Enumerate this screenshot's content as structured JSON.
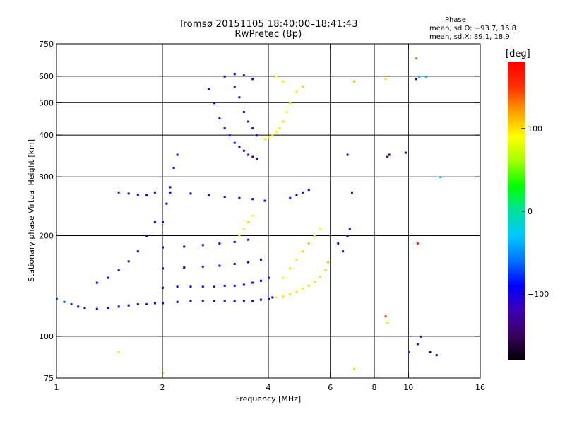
{
  "header": {
    "title": "Tromsø 20151105 18:40:00–18:41:43",
    "subtitle": "RwPretec (8p)",
    "phase_heading": "Phase",
    "stat_o": "mean, sd,O: −93.7, 16.8",
    "stat_x": "mean, sd,X:  89.1, 18.9"
  },
  "colorbar": {
    "unit": "[deg]",
    "ticks": [
      {
        "value": 100,
        "label": "100"
      },
      {
        "value": 0,
        "label": "0"
      },
      {
        "value": -100,
        "label": "−100"
      }
    ],
    "range": [
      -180,
      180
    ],
    "colors_bottom_to_top": [
      "#000000",
      "#3a0060",
      "#3d00b4",
      "#0000ff",
      "#0070ff",
      "#00c8ff",
      "#00e0a0",
      "#00ff00",
      "#a0ff00",
      "#ffff00",
      "#ffa000",
      "#ff3000",
      "#ff0000"
    ]
  },
  "chart_data": {
    "type": "scatter",
    "title": "Tromsø 20151105 18:40:00–18:41:43",
    "subtitle": "RwPretec (8p)",
    "xlabel": "Frequency [MHz]",
    "ylabel": "Stationary phase Virtual Height [km]",
    "x_scale": "log",
    "y_scale": "log",
    "xlim": [
      1,
      16
    ],
    "ylim": [
      75,
      750
    ],
    "x_ticks": [
      {
        "value": 1,
        "label": "1"
      },
      {
        "value": 2,
        "label": "2"
      },
      {
        "value": 4,
        "label": "4"
      },
      {
        "value": 6,
        "label": "6"
      },
      {
        "value": 8,
        "label": "8"
      },
      {
        "value": 10,
        "label": "10"
      },
      {
        "value": 16,
        "label": "16"
      }
    ],
    "x_grid": [
      2,
      4,
      6,
      8,
      10
    ],
    "y_ticks": [
      {
        "value": 75,
        "label": "75"
      },
      {
        "value": 100,
        "label": "100"
      },
      {
        "value": 200,
        "label": "200"
      },
      {
        "value": 300,
        "label": "300"
      },
      {
        "value": 400,
        "label": "400"
      },
      {
        "value": 500,
        "label": "500"
      },
      {
        "value": 600,
        "label": "600"
      },
      {
        "value": 750,
        "label": "750"
      }
    ],
    "y_grid": [
      100,
      200,
      300,
      400,
      500,
      600
    ],
    "grid": true,
    "color_by": "phase [deg]",
    "points": [
      [
        1.0,
        130,
        -60
      ],
      [
        1.05,
        127,
        -70
      ],
      [
        1.1,
        125,
        -80
      ],
      [
        1.15,
        123,
        -95
      ],
      [
        1.2,
        122,
        -100
      ],
      [
        1.3,
        121,
        -100
      ],
      [
        1.4,
        122,
        -105
      ],
      [
        1.5,
        123,
        -100
      ],
      [
        1.6,
        124,
        -100
      ],
      [
        1.7,
        125,
        -105
      ],
      [
        1.8,
        125,
        -100
      ],
      [
        1.9,
        126,
        -100
      ],
      [
        2.0,
        126,
        -100
      ],
      [
        2.2,
        127,
        -100
      ],
      [
        2.4,
        128,
        -100
      ],
      [
        2.6,
        128,
        -100
      ],
      [
        2.8,
        128,
        -100
      ],
      [
        3.0,
        128,
        -100
      ],
      [
        3.2,
        128,
        -100
      ],
      [
        3.4,
        128,
        -100
      ],
      [
        3.6,
        128,
        -95
      ],
      [
        3.8,
        129,
        -95
      ],
      [
        4.0,
        130,
        -95
      ],
      [
        4.1,
        131,
        -95
      ],
      [
        4.2,
        131,
        95
      ],
      [
        4.4,
        132,
        95
      ],
      [
        4.6,
        134,
        100
      ],
      [
        4.8,
        136,
        100
      ],
      [
        5.0,
        139,
        95
      ],
      [
        5.2,
        142,
        100
      ],
      [
        5.4,
        146,
        95
      ],
      [
        5.6,
        151,
        100
      ],
      [
        5.8,
        158,
        105
      ],
      [
        5.9,
        167,
        110
      ],
      [
        1.3,
        145,
        -100
      ],
      [
        1.4,
        150,
        -100
      ],
      [
        1.5,
        158,
        -100
      ],
      [
        1.6,
        168,
        -105
      ],
      [
        1.7,
        180,
        -100
      ],
      [
        1.8,
        200,
        -95
      ],
      [
        1.9,
        220,
        -100
      ],
      [
        2.0,
        140,
        -100
      ],
      [
        2.2,
        141,
        -100
      ],
      [
        2.4,
        141,
        -100
      ],
      [
        2.6,
        141,
        -100
      ],
      [
        2.8,
        141,
        -100
      ],
      [
        3.0,
        142,
        -90
      ],
      [
        3.2,
        142,
        -90
      ],
      [
        3.4,
        143,
        -95
      ],
      [
        3.6,
        145,
        -95
      ],
      [
        3.8,
        147,
        -90
      ],
      [
        4.0,
        150,
        -90
      ],
      [
        2.0,
        160,
        -100
      ],
      [
        2.3,
        161,
        -105
      ],
      [
        2.6,
        162,
        -100
      ],
      [
        2.9,
        163,
        -90
      ],
      [
        3.2,
        165,
        -95
      ],
      [
        3.5,
        167,
        -90
      ],
      [
        3.8,
        170,
        -95
      ],
      [
        2.0,
        185,
        -100
      ],
      [
        2.3,
        186,
        -105
      ],
      [
        2.6,
        188,
        -100
      ],
      [
        2.9,
        190,
        -95
      ],
      [
        3.2,
        192,
        -90
      ],
      [
        3.5,
        195,
        -95
      ],
      [
        1.5,
        270,
        -100
      ],
      [
        1.6,
        268,
        -100
      ],
      [
        1.7,
        266,
        -105
      ],
      [
        1.8,
        265,
        -100
      ],
      [
        1.9,
        270,
        -100
      ],
      [
        2.0,
        220,
        -100
      ],
      [
        2.05,
        250,
        -100
      ],
      [
        2.1,
        280,
        -100
      ],
      [
        2.15,
        320,
        -105
      ],
      [
        2.2,
        350,
        -100
      ],
      [
        2.1,
        270,
        -100
      ],
      [
        2.4,
        268,
        -105
      ],
      [
        2.7,
        265,
        -100
      ],
      [
        3.0,
        262,
        -100
      ],
      [
        3.3,
        260,
        -100
      ],
      [
        3.6,
        258,
        -95
      ],
      [
        3.9,
        255,
        -90
      ],
      [
        2.7,
        550,
        -90
      ],
      [
        2.8,
        500,
        -100
      ],
      [
        2.9,
        450,
        -100
      ],
      [
        3.0,
        420,
        -100
      ],
      [
        3.1,
        400,
        -105
      ],
      [
        3.2,
        380,
        -110
      ],
      [
        3.3,
        370,
        -120
      ],
      [
        3.4,
        360,
        -120
      ],
      [
        3.5,
        350,
        -115
      ],
      [
        3.6,
        345,
        -120
      ],
      [
        3.7,
        340,
        -115
      ],
      [
        3.2,
        560,
        -110
      ],
      [
        3.3,
        520,
        -120
      ],
      [
        3.4,
        470,
        -125
      ],
      [
        3.5,
        440,
        -120
      ],
      [
        3.6,
        420,
        -110
      ],
      [
        3.7,
        400,
        -115
      ],
      [
        3.0,
        600,
        -90
      ],
      [
        3.2,
        610,
        -100
      ],
      [
        3.4,
        605,
        -110
      ],
      [
        3.6,
        590,
        -100
      ],
      [
        3.9,
        390,
        100
      ],
      [
        4.0,
        395,
        95
      ],
      [
        4.1,
        400,
        100
      ],
      [
        4.2,
        410,
        90
      ],
      [
        4.3,
        420,
        95
      ],
      [
        4.4,
        440,
        100
      ],
      [
        4.5,
        470,
        90
      ],
      [
        4.6,
        500,
        100
      ],
      [
        4.8,
        540,
        95
      ],
      [
        5.0,
        560,
        105
      ],
      [
        4.2,
        600,
        90
      ],
      [
        4.4,
        580,
        95
      ],
      [
        4.4,
        150,
        90
      ],
      [
        4.6,
        160,
        100
      ],
      [
        4.8,
        170,
        95
      ],
      [
        5.0,
        180,
        100
      ],
      [
        5.2,
        190,
        110
      ],
      [
        5.4,
        200,
        100
      ],
      [
        5.6,
        210,
        90
      ],
      [
        3.3,
        200,
        90
      ],
      [
        3.4,
        210,
        95
      ],
      [
        3.5,
        220,
        100
      ],
      [
        3.6,
        230,
        90
      ],
      [
        4.6,
        260,
        -90
      ],
      [
        4.8,
        265,
        -95
      ],
      [
        5.0,
        270,
        -100
      ],
      [
        5.2,
        275,
        -90
      ],
      [
        6.3,
        190,
        -110
      ],
      [
        6.5,
        180,
        -120
      ],
      [
        6.7,
        200,
        -100
      ],
      [
        6.8,
        210,
        -120
      ],
      [
        6.7,
        350,
        -100
      ],
      [
        6.9,
        270,
        -100
      ],
      [
        7.0,
        580,
        110
      ],
      [
        8.6,
        590,
        100
      ],
      [
        8.7,
        345,
        -150
      ],
      [
        8.8,
        350,
        -170
      ],
      [
        9.8,
        355,
        -110
      ],
      [
        10.5,
        590,
        -100
      ],
      [
        10.7,
        600,
        -40
      ],
      [
        11.2,
        600,
        -40
      ],
      [
        12.3,
        300,
        -30
      ],
      [
        10.5,
        680,
        130
      ],
      [
        10.6,
        190,
        160
      ],
      [
        10.0,
        90,
        -80
      ],
      [
        10.6,
        95,
        -120
      ],
      [
        10.8,
        100,
        -110
      ],
      [
        11.5,
        90,
        -150
      ],
      [
        12.0,
        88,
        -140
      ],
      [
        8.6,
        115,
        150
      ],
      [
        8.7,
        110,
        100
      ],
      [
        7.0,
        80,
        100
      ],
      [
        1.5,
        90,
        100
      ],
      [
        2.0,
        78,
        100
      ]
    ]
  }
}
